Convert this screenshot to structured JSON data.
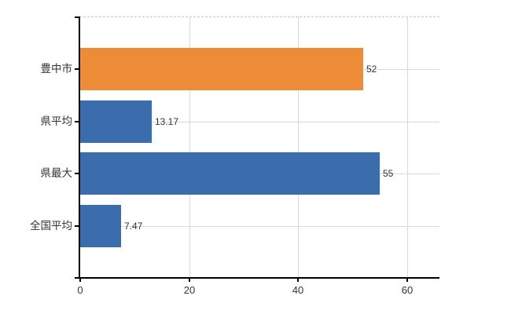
{
  "chart_data": {
    "type": "bar",
    "orientation": "horizontal",
    "title": "",
    "categories": [
      "豊中市",
      "県平均",
      "県最大",
      "全国平均"
    ],
    "values": [
      52,
      13.17,
      55,
      7.47
    ],
    "value_labels": [
      "52",
      "13.17",
      "55",
      "7.47"
    ],
    "bar_colors": [
      "#ED8C37",
      "#3B6CAB",
      "#3B6CAB",
      "#3B6CAB"
    ],
    "highlighted_category": "豊中市",
    "xlabel": "",
    "ylabel": "",
    "x_ticks": [
      0,
      20,
      40,
      60
    ],
    "x_tick_labels": [
      "0",
      "20",
      "40",
      "60"
    ],
    "xlim": [
      0,
      66
    ],
    "grid": {
      "vertical_at_ticks": true,
      "horizontal_at_category_centers": true,
      "top_border": "dashed"
    },
    "legend": null
  },
  "colors": {
    "bar_orange": "#ED8C37",
    "bar_blue": "#3B6CAB",
    "grid": "#D9D9D9",
    "top_border": "#C8C8C8",
    "axis": "#000000",
    "text": "#333333",
    "background": "#FFFFFF"
  }
}
